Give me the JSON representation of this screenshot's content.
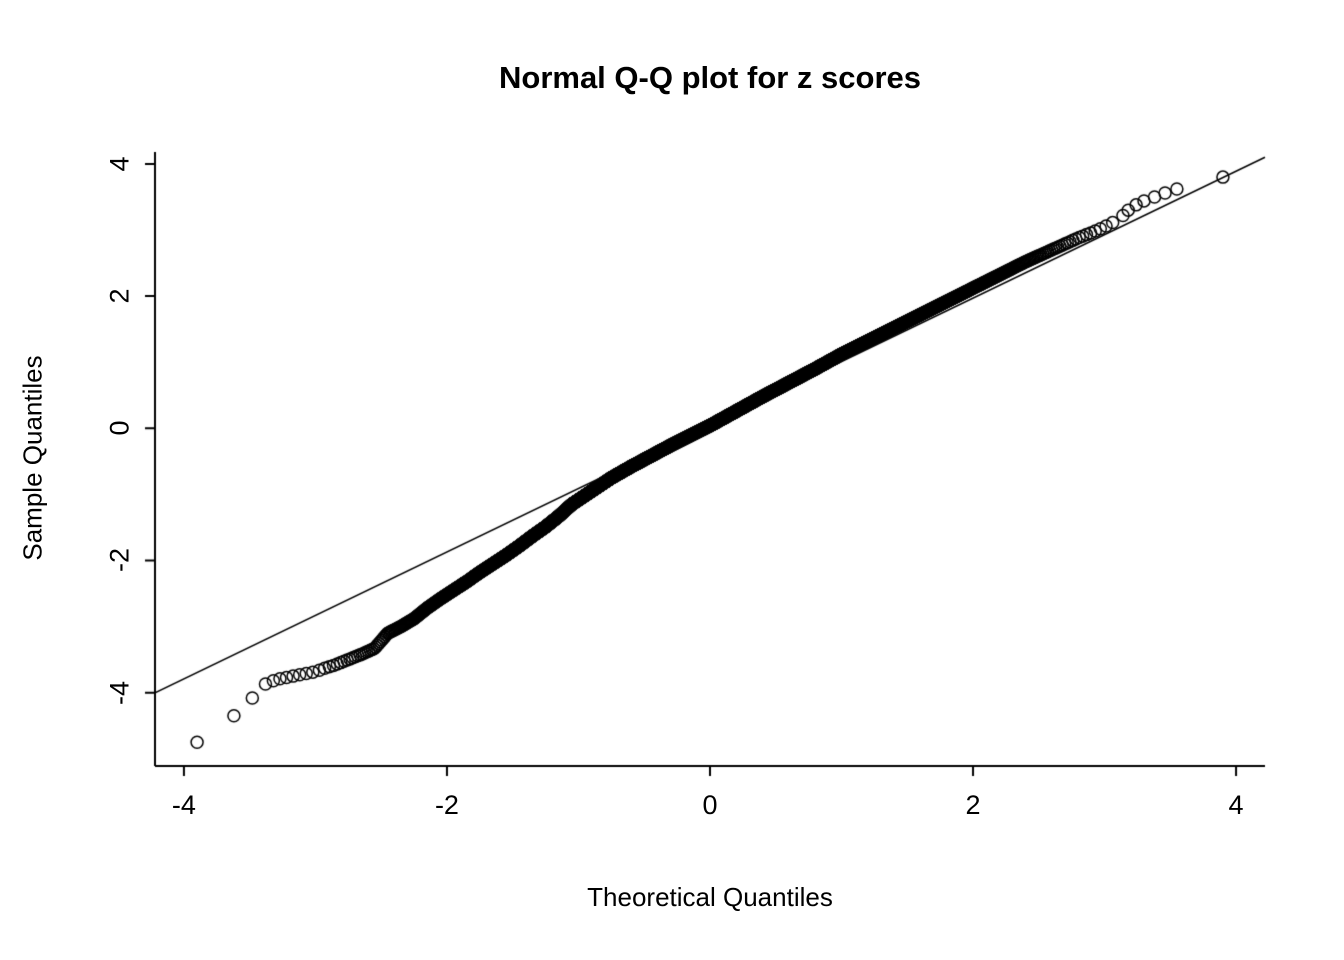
{
  "chart_data": {
    "type": "scatter",
    "subtype": "normal-qq-plot",
    "title": "Normal Q-Q plot for z scores",
    "xlabel": "Theoretical Quantiles",
    "ylabel": "Sample Quantiles",
    "xlim": [
      -4.22,
      4.22
    ],
    "ylim": [
      -5.11,
      4.18
    ],
    "xticks": [
      -4,
      -2,
      0,
      2,
      4
    ],
    "yticks": [
      -4,
      -2,
      0,
      2,
      4
    ],
    "grid": false,
    "legend": "none",
    "point_style": {
      "marker": "open-circle",
      "radius_px": 6,
      "color": "#000000"
    },
    "axis_color": "#000000",
    "background_color": "#ffffff",
    "n_points_approx": 5000,
    "reference_line": {
      "slope": 0.96,
      "intercept": 0.05,
      "color": "#000000"
    },
    "dense_band_range": [
      -2.9,
      3.12
    ],
    "curve_points": [
      [
        -3.9,
        -4.75
      ],
      [
        -3.6,
        -4.35
      ],
      [
        -3.45,
        -4.05
      ],
      [
        -3.35,
        -3.85
      ],
      [
        -3.25,
        -3.78
      ],
      [
        -3.15,
        -3.73
      ],
      [
        -3.05,
        -3.7
      ],
      [
        -2.95,
        -3.64
      ],
      [
        -2.85,
        -3.58
      ],
      [
        -2.75,
        -3.5
      ],
      [
        -2.65,
        -3.42
      ],
      [
        -2.55,
        -3.33
      ],
      [
        -2.45,
        -3.1
      ],
      [
        -2.35,
        -3.0
      ],
      [
        -2.25,
        -2.88
      ],
      [
        -2.15,
        -2.72
      ],
      [
        -2.05,
        -2.58
      ],
      [
        -1.95,
        -2.45
      ],
      [
        -1.85,
        -2.32
      ],
      [
        -1.75,
        -2.18
      ],
      [
        -1.65,
        -2.05
      ],
      [
        -1.55,
        -1.92
      ],
      [
        -1.45,
        -1.78
      ],
      [
        -1.35,
        -1.63
      ],
      [
        -1.25,
        -1.49
      ],
      [
        -1.15,
        -1.33
      ],
      [
        -1.05,
        -1.15
      ],
      [
        -0.9,
        -0.95
      ],
      [
        -0.75,
        -0.75
      ],
      [
        -0.6,
        -0.58
      ],
      [
        -0.45,
        -0.42
      ],
      [
        -0.3,
        -0.26
      ],
      [
        -0.15,
        -0.11
      ],
      [
        0,
        0.04
      ],
      [
        0.2,
        0.26
      ],
      [
        0.4,
        0.48
      ],
      [
        0.6,
        0.69
      ],
      [
        0.8,
        0.9
      ],
      [
        1.0,
        1.12
      ],
      [
        1.2,
        1.32
      ],
      [
        1.4,
        1.52
      ],
      [
        1.6,
        1.72
      ],
      [
        1.8,
        1.92
      ],
      [
        2.0,
        2.12
      ],
      [
        2.2,
        2.32
      ],
      [
        2.4,
        2.52
      ],
      [
        2.6,
        2.7
      ],
      [
        2.8,
        2.88
      ],
      [
        2.95,
        3.0
      ],
      [
        3.1,
        3.15
      ]
    ],
    "sparse_tail_points_left": [
      [
        -3.9,
        -4.75
      ],
      [
        -3.62,
        -4.35
      ],
      [
        -3.48,
        -4.08
      ],
      [
        -3.38,
        -3.87
      ],
      [
        -3.32,
        -3.82
      ],
      [
        -3.27,
        -3.79
      ],
      [
        -3.22,
        -3.77
      ],
      [
        -3.17,
        -3.75
      ],
      [
        -3.12,
        -3.73
      ],
      [
        -3.07,
        -3.71
      ],
      [
        -3.02,
        -3.69
      ],
      [
        -2.97,
        -3.66
      ],
      [
        -2.93,
        -3.63
      ]
    ],
    "sparse_tail_points_right": [
      [
        3.14,
        3.22
      ],
      [
        3.18,
        3.3
      ],
      [
        3.24,
        3.38
      ],
      [
        3.3,
        3.44
      ],
      [
        3.38,
        3.5
      ],
      [
        3.46,
        3.56
      ],
      [
        3.55,
        3.62
      ],
      [
        3.9,
        3.8
      ]
    ]
  }
}
